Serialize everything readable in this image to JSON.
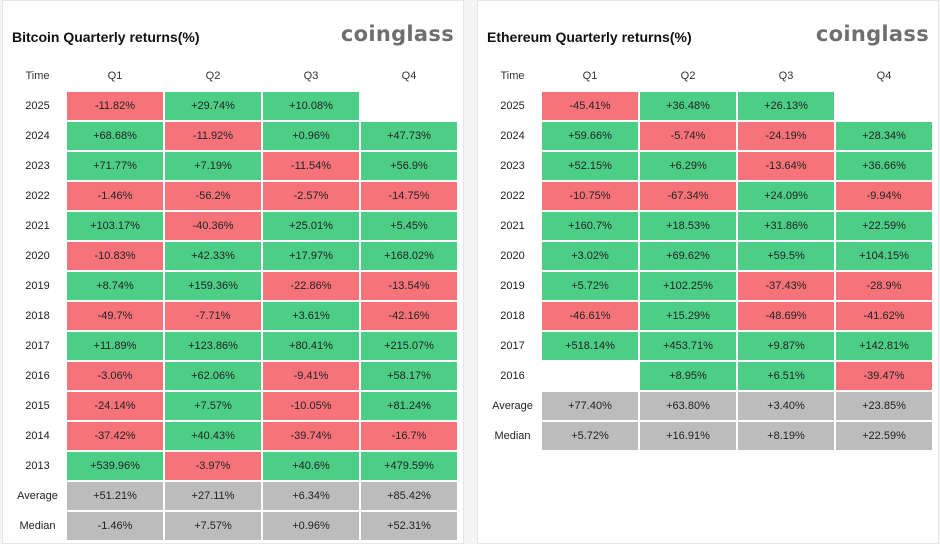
{
  "chart_data": [
    {
      "type": "table",
      "title": "Bitcoin Quarterly returns(%)",
      "brand": "coinglass",
      "columns": [
        "Time",
        "Q1",
        "Q2",
        "Q3",
        "Q4"
      ],
      "rows": [
        {
          "time": "2025",
          "values": [
            "-11.82%",
            "+29.74%",
            "+10.08%",
            ""
          ]
        },
        {
          "time": "2024",
          "values": [
            "+68.68%",
            "-11.92%",
            "+0.96%",
            "+47.73%"
          ]
        },
        {
          "time": "2023",
          "values": [
            "+71.77%",
            "+7.19%",
            "-11.54%",
            "+56.9%"
          ]
        },
        {
          "time": "2022",
          "values": [
            "-1.46%",
            "-56.2%",
            "-2.57%",
            "-14.75%"
          ]
        },
        {
          "time": "2021",
          "values": [
            "+103.17%",
            "-40.36%",
            "+25.01%",
            "+5.45%"
          ]
        },
        {
          "time": "2020",
          "values": [
            "-10.83%",
            "+42.33%",
            "+17.97%",
            "+168.02%"
          ]
        },
        {
          "time": "2019",
          "values": [
            "+8.74%",
            "+159.36%",
            "-22.86%",
            "-13.54%"
          ]
        },
        {
          "time": "2018",
          "values": [
            "-49.7%",
            "-7.71%",
            "+3.61%",
            "-42.16%"
          ]
        },
        {
          "time": "2017",
          "values": [
            "+11.89%",
            "+123.86%",
            "+80.41%",
            "+215.07%"
          ]
        },
        {
          "time": "2016",
          "values": [
            "-3.06%",
            "+62.06%",
            "-9.41%",
            "+58.17%"
          ]
        },
        {
          "time": "2015",
          "values": [
            "-24.14%",
            "+7.57%",
            "-10.05%",
            "+81.24%"
          ]
        },
        {
          "time": "2014",
          "values": [
            "-37.42%",
            "+40.43%",
            "-39.74%",
            "-16.7%"
          ]
        },
        {
          "time": "2013",
          "values": [
            "+539.96%",
            "-3.97%",
            "+40.6%",
            "+479.59%"
          ]
        },
        {
          "time": "Average",
          "values": [
            "+51.21%",
            "+27.11%",
            "+6.34%",
            "+85.42%"
          ],
          "stat": true
        },
        {
          "time": "Median",
          "values": [
            "-1.46%",
            "+7.57%",
            "+0.96%",
            "+52.31%"
          ],
          "stat": true
        }
      ]
    },
    {
      "type": "table",
      "title": "Ethereum Quarterly returns(%)",
      "brand": "coinglass",
      "columns": [
        "Time",
        "Q1",
        "Q2",
        "Q3",
        "Q4"
      ],
      "rows": [
        {
          "time": "2025",
          "values": [
            "-45.41%",
            "+36.48%",
            "+26.13%",
            ""
          ]
        },
        {
          "time": "2024",
          "values": [
            "+59.66%",
            "-5.74%",
            "-24.19%",
            "+28.34%"
          ]
        },
        {
          "time": "2023",
          "values": [
            "+52.15%",
            "+6.29%",
            "-13.64%",
            "+36.66%"
          ]
        },
        {
          "time": "2022",
          "values": [
            "-10.75%",
            "-67.34%",
            "+24.09%",
            "-9.94%"
          ]
        },
        {
          "time": "2021",
          "values": [
            "+160.7%",
            "+18.53%",
            "+31.86%",
            "+22.59%"
          ]
        },
        {
          "time": "2020",
          "values": [
            "+3.02%",
            "+69.62%",
            "+59.5%",
            "+104.15%"
          ]
        },
        {
          "time": "2019",
          "values": [
            "+5.72%",
            "+102.25%",
            "-37.43%",
            "-28.9%"
          ]
        },
        {
          "time": "2018",
          "values": [
            "-46.61%",
            "+15.29%",
            "-48.69%",
            "-41.62%"
          ]
        },
        {
          "time": "2017",
          "values": [
            "+518.14%",
            "+453.71%",
            "+9.87%",
            "+142.81%"
          ]
        },
        {
          "time": "2016",
          "values": [
            "",
            "+8.95%",
            "+6.51%",
            "-39.47%"
          ]
        },
        {
          "time": "Average",
          "values": [
            "+77.40%",
            "+63.80%",
            "+3.40%",
            "+23.85%"
          ],
          "stat": true
        },
        {
          "time": "Median",
          "values": [
            "+5.72%",
            "+16.91%",
            "+8.19%",
            "+22.59%"
          ],
          "stat": true
        }
      ]
    }
  ],
  "colors": {
    "positive": "#4cce86",
    "negative": "#f6737a",
    "stat": "#bcbcbc"
  }
}
